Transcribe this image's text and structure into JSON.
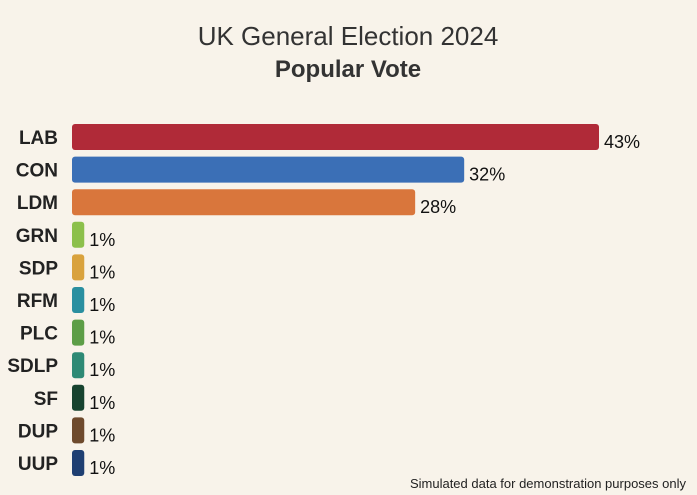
{
  "chart_data": {
    "type": "bar",
    "orientation": "horizontal",
    "title": "UK General Election 2024",
    "subtitle": "Popular Vote",
    "categories": [
      "LAB",
      "CON",
      "LDM",
      "GRN",
      "SDP",
      "RFM",
      "PLC",
      "SDLP",
      "SF",
      "DUP",
      "UUP"
    ],
    "values": [
      43,
      32,
      28,
      1,
      1,
      1,
      1,
      1,
      1,
      1,
      1
    ],
    "value_labels": [
      "43%",
      "32%",
      "28%",
      "1%",
      "1%",
      "1%",
      "1%",
      "1%",
      "1%",
      "1%",
      "1%"
    ],
    "colors": [
      "#b02a38",
      "#3b6fb6",
      "#d9763c",
      "#8cc04b",
      "#d9a23d",
      "#2a8fa0",
      "#5d9e47",
      "#2e8a75",
      "#17432f",
      "#6e4a2d",
      "#1f3f72"
    ],
    "xlim": [
      0,
      43
    ],
    "xlabel": "",
    "ylabel": "",
    "grid": false,
    "footnote": "Simulated data for demonstration purposes only"
  }
}
